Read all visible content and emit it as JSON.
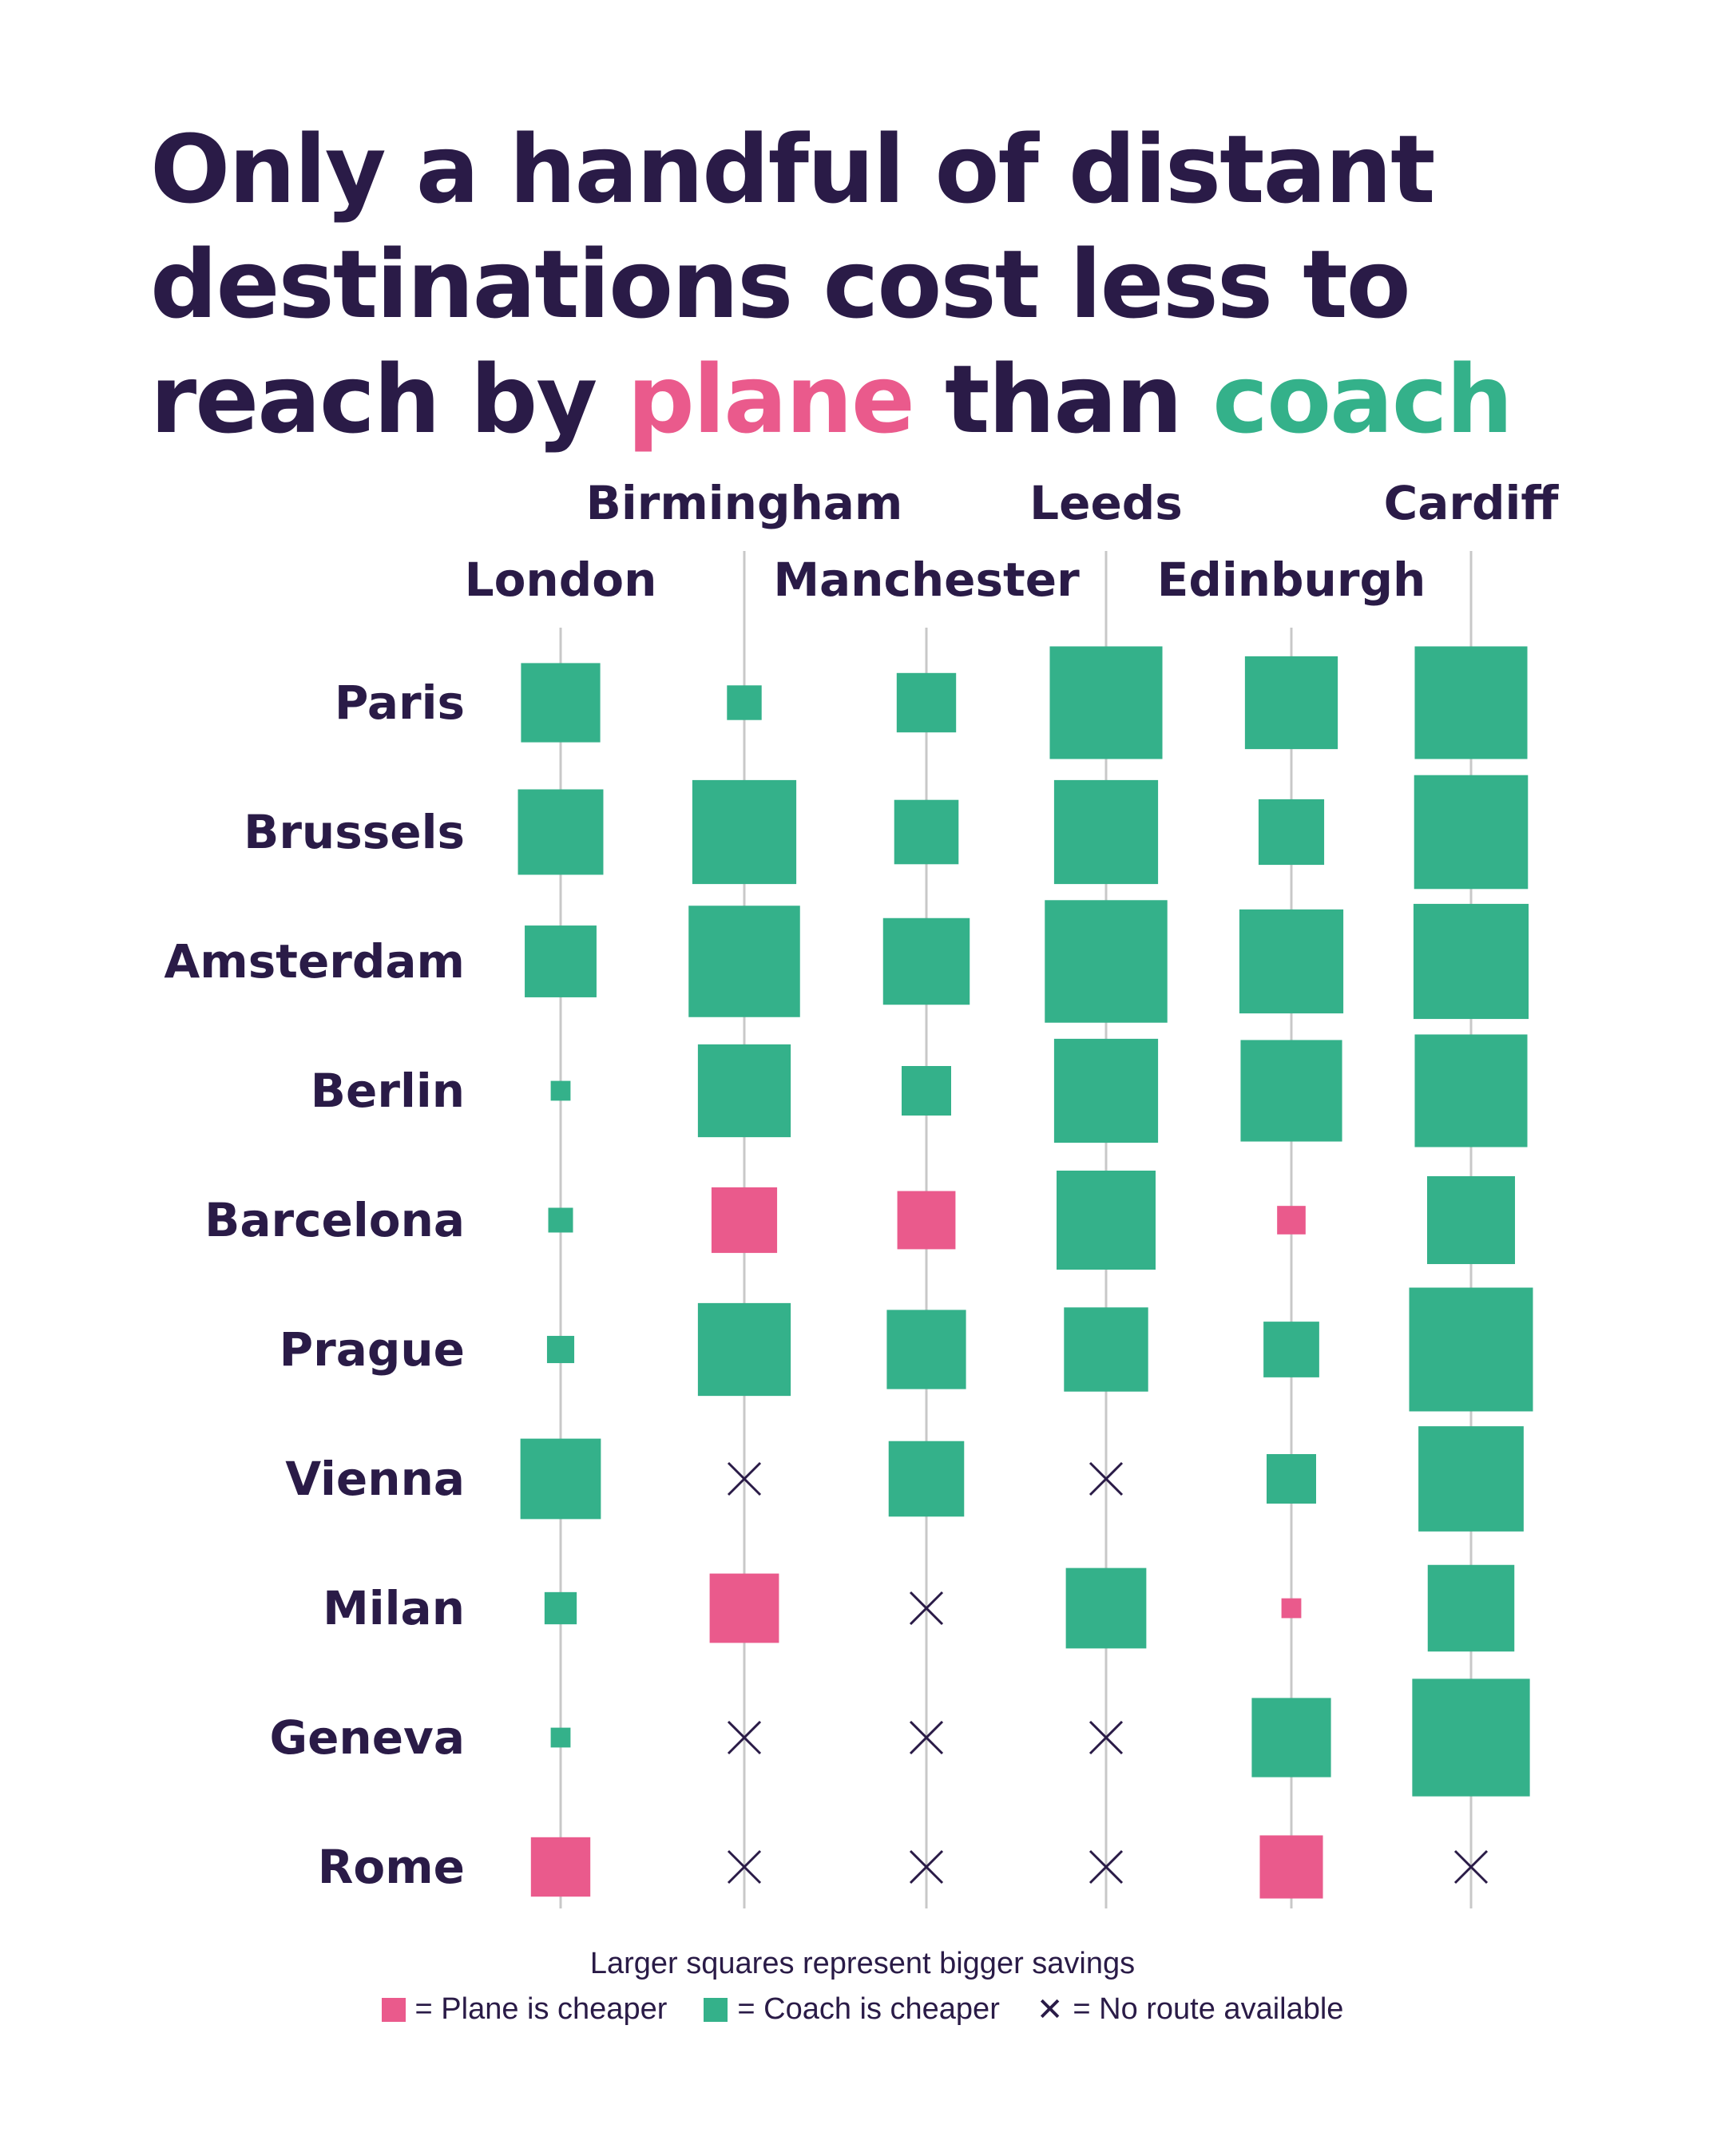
{
  "title": {
    "part1": "Only a handful of distant destinations cost less to reach by ",
    "plane": "plane",
    "part2": " than ",
    "coach": "coach"
  },
  "colors": {
    "plane": "#ea5a8c",
    "coach": "#34b18a",
    "text": "#2a1b47",
    "line": "#c8c8c8"
  },
  "legend": {
    "note": "Larger squares represent bigger savings",
    "plane_label": "= Plane is cheaper",
    "coach_label": "= Coach is cheaper",
    "none_label": "= No route available"
  },
  "chart_data": {
    "type": "table",
    "origins": [
      "London",
      "Birmingham",
      "Manchester",
      "Leeds",
      "Edinburgh",
      "Cardiff"
    ],
    "destinations": [
      "Paris",
      "Brussels",
      "Amsterdam",
      "Berlin",
      "Barcelona",
      "Prague",
      "Vienna",
      "Milan",
      "Geneva",
      "Rome"
    ],
    "cheaper": [
      [
        "coach",
        "coach",
        "coach",
        "coach",
        "coach",
        "coach"
      ],
      [
        "coach",
        "coach",
        "coach",
        "coach",
        "coach",
        "coach"
      ],
      [
        "coach",
        "coach",
        "coach",
        "coach",
        "coach",
        "coach"
      ],
      [
        "coach",
        "coach",
        "coach",
        "coach",
        "coach",
        "coach"
      ],
      [
        "coach",
        "plane",
        "plane",
        "coach",
        "plane",
        "coach"
      ],
      [
        "coach",
        "coach",
        "coach",
        "coach",
        "coach",
        "coach"
      ],
      [
        "coach",
        "none",
        "coach",
        "none",
        "coach",
        "coach"
      ],
      [
        "coach",
        "plane",
        "none",
        "coach",
        "plane",
        "coach"
      ],
      [
        "coach",
        "none",
        "none",
        "none",
        "coach",
        "coach"
      ],
      [
        "plane",
        "none",
        "none",
        "none",
        "plane",
        "none"
      ]
    ],
    "relative_savings": [
      [
        0.64,
        0.28,
        0.48,
        0.91,
        0.75,
        0.91
      ],
      [
        0.69,
        0.84,
        0.52,
        0.84,
        0.53,
        0.92
      ],
      [
        0.58,
        0.9,
        0.7,
        0.99,
        0.84,
        0.93
      ],
      [
        0.16,
        0.75,
        0.4,
        0.84,
        0.82,
        0.91
      ],
      [
        0.2,
        0.53,
        0.47,
        0.8,
        0.23,
        0.71
      ],
      [
        0.22,
        0.75,
        0.64,
        0.68,
        0.45,
        1.0
      ],
      [
        0.65,
        0,
        0.61,
        0,
        0.4,
        0.85
      ],
      [
        0.26,
        0.56,
        0,
        0.65,
        0.16,
        0.7
      ],
      [
        0.16,
        0,
        0,
        0,
        0.64,
        0.95
      ],
      [
        0.48,
        0,
        0,
        0,
        0.51,
        0
      ]
    ]
  }
}
